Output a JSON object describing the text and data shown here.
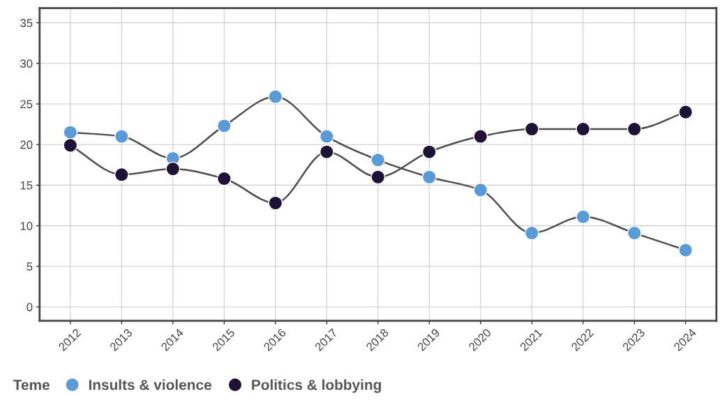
{
  "chart_data": {
    "type": "line",
    "categories": [
      "2012",
      "2013",
      "2014",
      "2015",
      "2016",
      "2017",
      "2018",
      "2019",
      "2020",
      "2021",
      "2022",
      "2023",
      "2024"
    ],
    "series": [
      {
        "name": "Insults & violence",
        "color": "#5b9bd5",
        "values": [
          21.5,
          21.0,
          18.3,
          22.3,
          25.9,
          21.0,
          18.1,
          16.0,
          14.4,
          9.1,
          11.1,
          9.1,
          7.0
        ]
      },
      {
        "name": "Politics & lobbying",
        "color": "#1e1236",
        "values": [
          19.9,
          16.3,
          17.0,
          15.8,
          12.8,
          19.1,
          16.0,
          19.1,
          21.0,
          21.9,
          21.9,
          21.9,
          24.0
        ]
      }
    ],
    "ylim": [
      -1.7,
      36.8
    ],
    "yticks": [
      0,
      5,
      10,
      15,
      20,
      25,
      30,
      35
    ],
    "grid": true,
    "legend": "bottom left",
    "legend_title": "Teme",
    "marker": "circle",
    "line_style": "solid"
  }
}
